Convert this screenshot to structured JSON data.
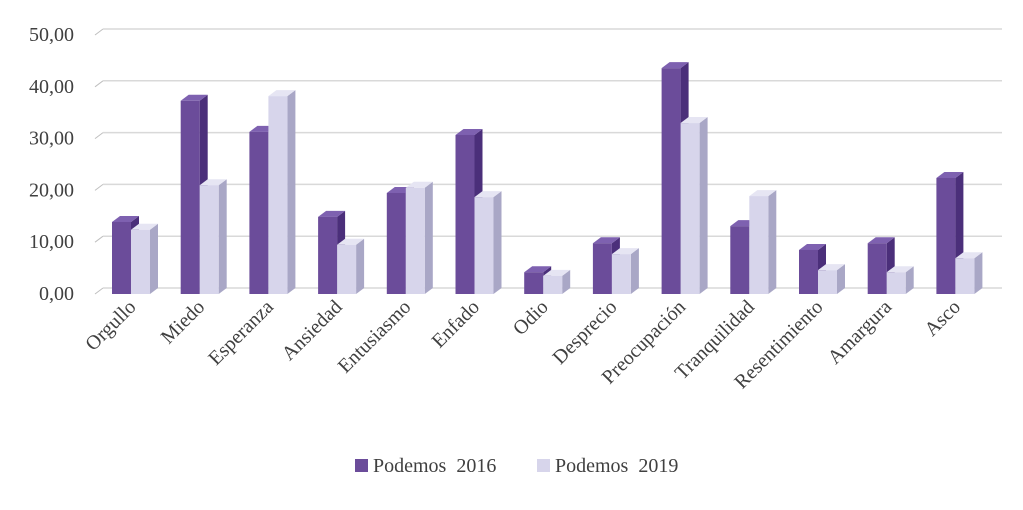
{
  "chart_data": {
    "type": "bar",
    "title": "",
    "xlabel": "",
    "ylabel": "",
    "ylim": [
      0,
      50
    ],
    "yticks": [
      "0,00",
      "10,00",
      "20,00",
      "30,00",
      "40,00",
      "50,00"
    ],
    "grid": true,
    "legend_position": "bottom",
    "categories": [
      "Orgullo",
      "Miedo",
      "Esperanza",
      "Ansiedad",
      "Entusiasmo",
      "Enfado",
      "Odio",
      "Desprecio",
      "Preocupación",
      "Tranquilidad",
      "Resentimiento",
      "Amargura",
      "Asco"
    ],
    "series": [
      {
        "name": "Podemos  2016",
        "color": "#6b4c9a",
        "values": [
          13.9,
          37.3,
          31.3,
          14.9,
          19.5,
          30.7,
          4.2,
          9.8,
          43.6,
          13.1,
          8.5,
          9.8,
          22.4
        ]
      },
      {
        "name": "Podemos  2019",
        "color": "#d7d5eb",
        "values": [
          12.4,
          21.0,
          38.2,
          9.5,
          20.5,
          18.7,
          3.5,
          7.7,
          33.0,
          18.9,
          4.6,
          4.2,
          6.9
        ]
      }
    ]
  }
}
